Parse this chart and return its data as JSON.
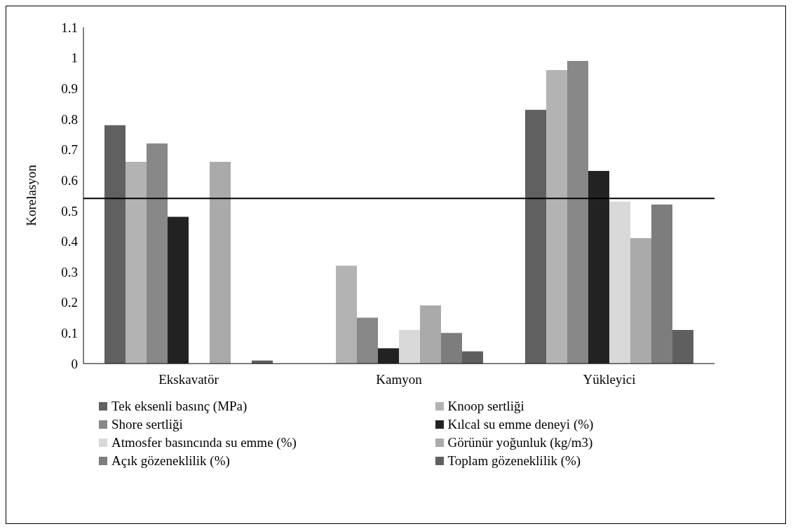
{
  "chart_data": {
    "type": "bar",
    "ylabel": "Korelasyon",
    "categories": [
      "Ekskavatör",
      "Kamyon",
      "Yükleyici"
    ],
    "series": [
      {
        "name": "Tek eksenli basınç (MPa)",
        "color": "#606060",
        "values": [
          0.78,
          null,
          0.83
        ]
      },
      {
        "name": "Knoop sertliği",
        "color": "#b3b3b3",
        "values": [
          0.66,
          0.32,
          0.96
        ]
      },
      {
        "name": "Shore sertliği",
        "color": "#888888",
        "values": [
          0.72,
          0.15,
          0.99
        ]
      },
      {
        "name": "Kılcal su emme deneyi (%)",
        "color": "#222222",
        "values": [
          0.48,
          0.05,
          0.63
        ]
      },
      {
        "name": "Atmosfer basıncında su emme (%)",
        "color": "#d9d9d9",
        "values": [
          null,
          0.11,
          0.53
        ]
      },
      {
        "name": "Görünür yoğunluk (kg/m3)",
        "color": "#aaaaaa",
        "values": [
          0.66,
          0.19,
          0.41
        ]
      },
      {
        "name": "Açık gözeneklilik (%)",
        "color": "#7d7d7d",
        "values": [
          null,
          0.1,
          0.52
        ]
      },
      {
        "name": "Toplam gözeneklilik (%)",
        "color": "#5f5f5f",
        "values": [
          0.01,
          0.04,
          0.11
        ]
      }
    ],
    "ylim": [
      0,
      1.1
    ],
    "yticks": [
      0,
      0.1,
      0.2,
      0.3,
      0.4,
      0.5,
      0.6,
      0.7,
      0.8,
      0.9,
      1,
      1.1
    ],
    "ref_lines": [
      {
        "axis": "y",
        "value": 0.54,
        "color": "#000000"
      }
    ],
    "grid": false,
    "legend": "bottom"
  }
}
